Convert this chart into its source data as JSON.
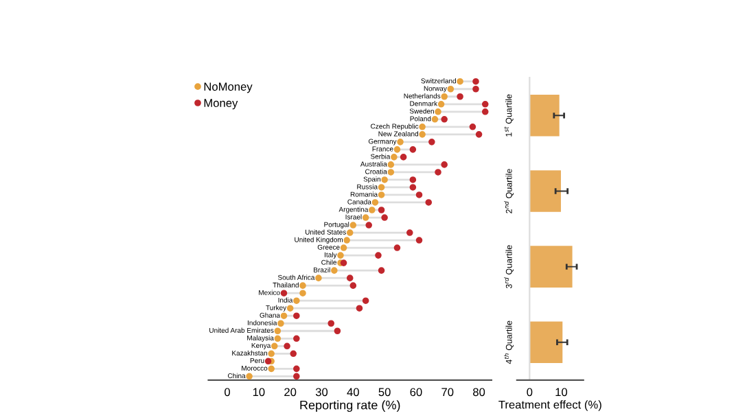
{
  "chart_data": [
    {
      "type": "scatter",
      "orientation": "horizontal",
      "xlabel": "Reporting rate (%)",
      "legend": "top left",
      "marker": "circle",
      "categories": [
        "Switzerland",
        "Norway",
        "Netherlands",
        "Denmark",
        "Sweden",
        "Poland",
        "Czech Republic",
        "New Zealand",
        "Germany",
        "France",
        "Serbia",
        "Australia",
        "Croatia",
        "Spain",
        "Russia",
        "Romania",
        "Canada",
        "Argentina",
        "Israel",
        "Portugal",
        "United States",
        "United Kingdom",
        "Greece",
        "Italy",
        "Chile",
        "Brazil",
        "South Africa",
        "Thailand",
        "Mexico",
        "India",
        "Turkey",
        "Ghana",
        "Indonesia",
        "United Arab Emirates",
        "Malaysia",
        "Kenya",
        "Kazakhstan",
        "Peru",
        "Morocco",
        "China"
      ],
      "series": [
        {
          "name": "NoMoney",
          "color": "#e8a33d",
          "values": [
            74,
            71,
            69,
            68,
            67,
            66,
            62,
            62,
            55,
            54,
            53,
            52,
            52,
            50,
            49,
            49,
            47,
            46,
            44,
            40,
            39,
            38,
            37,
            36,
            36,
            34,
            29,
            24,
            24,
            22,
            20,
            18,
            17,
            16,
            16,
            15,
            14,
            14,
            14,
            7
          ]
        },
        {
          "name": "Money",
          "color": "#c1272d",
          "values": [
            79,
            79,
            74,
            82,
            82,
            69,
            78,
            80,
            65,
            59,
            56,
            69,
            67,
            59,
            59,
            61,
            64,
            49,
            50,
            45,
            58,
            61,
            54,
            48,
            37,
            49,
            39,
            40,
            18,
            44,
            42,
            22,
            33,
            35,
            22,
            19,
            21,
            13,
            22,
            22
          ]
        }
      ],
      "xlim": [
        -6,
        84
      ],
      "xticks": [
        0,
        10,
        20,
        30,
        40,
        50,
        60,
        70,
        80
      ]
    },
    {
      "type": "bar",
      "orientation": "horizontal",
      "xlabel": "Treatment effect (%)",
      "color": "#e8ad5c",
      "categories": [
        "1$^{st}$ Quartile",
        "2$^{nd}$ Quartile",
        "3$^{rd}$ Quartile",
        "4$^{th}$ Quartile"
      ],
      "values": [
        9.4,
        9.9,
        13.5,
        10.4
      ],
      "errors": [
        [
          7.7,
          10.9
        ],
        [
          8.2,
          12.0
        ],
        [
          11.7,
          14.9
        ],
        [
          8.7,
          11.9
        ]
      ],
      "xlim": [
        -4,
        17
      ],
      "xticks": [
        0,
        10
      ]
    }
  ]
}
